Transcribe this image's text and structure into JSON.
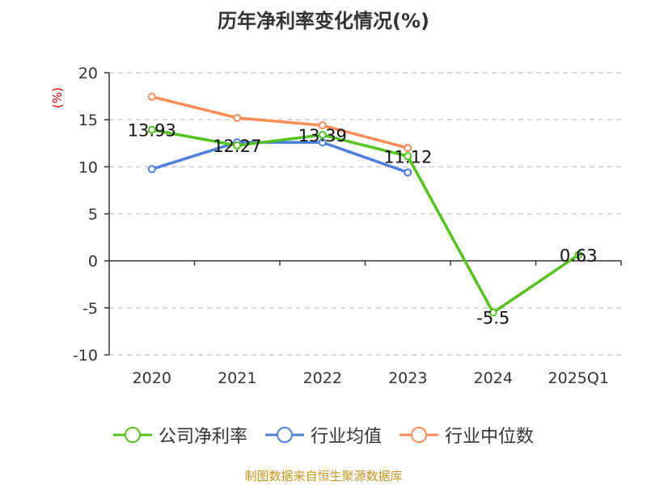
{
  "chart_data": {
    "type": "line",
    "title": "历年净利率变化情况(%)",
    "ylabel": "(%)",
    "xlabel": "",
    "ylim": [
      -10,
      20
    ],
    "yticks": [
      20,
      15,
      10,
      5,
      0,
      -5,
      -10
    ],
    "categories": [
      "2020",
      "2021",
      "2022",
      "2023",
      "2024",
      "2025Q1"
    ],
    "grid": true,
    "legend_position": "bottom",
    "series": [
      {
        "name": "公司净利率",
        "color": "#52c41a",
        "values": [
          13.93,
          12.27,
          13.39,
          11.12,
          -5.5,
          0.63
        ],
        "labels": [
          "13.93",
          "12.27",
          "13.39",
          "11.12",
          "-5.5",
          "0.63"
        ]
      },
      {
        "name": "行业均值",
        "color": "#4a7fe0",
        "values": [
          9.75,
          12.6,
          12.6,
          9.4,
          null,
          null
        ]
      },
      {
        "name": "行业中位数",
        "color": "#ff8c55",
        "values": [
          17.45,
          15.2,
          14.4,
          12.0,
          null,
          null
        ]
      }
    ]
  },
  "source": "制图数据来自恒生聚源数据库"
}
